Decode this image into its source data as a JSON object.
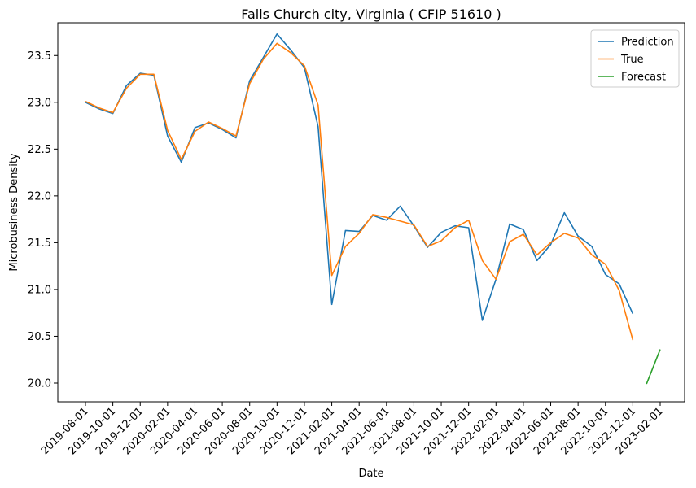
{
  "chart_data": {
    "type": "line",
    "title": "Falls Church city, Virginia ( CFIP 51610 )",
    "xlabel": "Date",
    "ylabel": "Microbusiness Density",
    "ylim": [
      19.8,
      23.85
    ],
    "yticks": [
      "20.0",
      "20.5",
      "21.0",
      "21.5",
      "22.0",
      "22.5",
      "23.0",
      "23.5"
    ],
    "xticks": [
      "2019-08-01",
      "2019-10-01",
      "2019-12-01",
      "2020-02-01",
      "2020-04-01",
      "2020-06-01",
      "2020-08-01",
      "2020-10-01",
      "2020-12-01",
      "2021-02-01",
      "2021-04-01",
      "2021-06-01",
      "2021-08-01",
      "2021-10-01",
      "2021-12-01",
      "2022-02-01",
      "2022-04-01",
      "2022-06-01",
      "2022-08-01",
      "2022-10-01",
      "2022-12-01",
      "2023-02-01"
    ],
    "x": [
      "2019-08-01",
      "2019-09-01",
      "2019-10-01",
      "2019-11-01",
      "2019-12-01",
      "2020-01-01",
      "2020-02-01",
      "2020-03-01",
      "2020-04-01",
      "2020-05-01",
      "2020-06-01",
      "2020-07-01",
      "2020-08-01",
      "2020-09-01",
      "2020-10-01",
      "2020-11-01",
      "2020-12-01",
      "2021-01-01",
      "2021-02-01",
      "2021-03-01",
      "2021-04-01",
      "2021-05-01",
      "2021-06-01",
      "2021-07-01",
      "2021-08-01",
      "2021-09-01",
      "2021-10-01",
      "2021-11-01",
      "2021-12-01",
      "2022-01-01",
      "2022-02-01",
      "2022-03-01",
      "2022-04-01",
      "2022-05-01",
      "2022-06-01",
      "2022-07-01",
      "2022-08-01",
      "2022-09-01",
      "2022-10-01",
      "2022-11-01",
      "2022-12-01"
    ],
    "series": [
      {
        "name": "Prediction",
        "color": "#1f77b4",
        "x": [
          "2019-08-01",
          "2019-09-01",
          "2019-10-01",
          "2019-11-01",
          "2019-12-01",
          "2020-01-01",
          "2020-02-01",
          "2020-03-01",
          "2020-04-01",
          "2020-05-01",
          "2020-06-01",
          "2020-07-01",
          "2020-08-01",
          "2020-09-01",
          "2020-10-01",
          "2020-11-01",
          "2020-12-01",
          "2021-01-01",
          "2021-02-01",
          "2021-03-01",
          "2021-04-01",
          "2021-05-01",
          "2021-06-01",
          "2021-07-01",
          "2021-08-01",
          "2021-09-01",
          "2021-10-01",
          "2021-11-01",
          "2021-12-01",
          "2022-01-01",
          "2022-02-01",
          "2022-03-01",
          "2022-04-01",
          "2022-05-01",
          "2022-06-01",
          "2022-07-01",
          "2022-08-01",
          "2022-09-01",
          "2022-10-01",
          "2022-11-01",
          "2022-12-01"
        ],
        "values": [
          23.0,
          22.93,
          22.88,
          23.18,
          23.31,
          23.29,
          22.64,
          22.36,
          22.73,
          22.78,
          22.71,
          22.62,
          23.23,
          23.48,
          23.73,
          23.56,
          23.37,
          22.74,
          20.84,
          21.63,
          21.62,
          21.79,
          21.74,
          21.89,
          21.68,
          21.45,
          21.61,
          21.68,
          21.66,
          20.67,
          21.11,
          21.7,
          21.64,
          21.31,
          21.48,
          21.82,
          21.57,
          21.46,
          21.16,
          21.06,
          20.74
        ]
      },
      {
        "name": "True",
        "color": "#ff7f0e",
        "x": [
          "2019-08-01",
          "2019-09-01",
          "2019-10-01",
          "2019-11-01",
          "2019-12-01",
          "2020-01-01",
          "2020-02-01",
          "2020-03-01",
          "2020-04-01",
          "2020-05-01",
          "2020-06-01",
          "2020-07-01",
          "2020-08-01",
          "2020-09-01",
          "2020-10-01",
          "2020-11-01",
          "2020-12-01",
          "2021-01-01",
          "2021-02-01",
          "2021-03-01",
          "2021-04-01",
          "2021-05-01",
          "2021-06-01",
          "2021-07-01",
          "2021-08-01",
          "2021-09-01",
          "2021-10-01",
          "2021-11-01",
          "2021-12-01",
          "2022-01-01",
          "2022-02-01",
          "2022-03-01",
          "2022-04-01",
          "2022-05-01",
          "2022-06-01",
          "2022-07-01",
          "2022-08-01",
          "2022-09-01",
          "2022-10-01",
          "2022-11-01",
          "2022-12-01"
        ],
        "values": [
          23.01,
          22.94,
          22.89,
          23.15,
          23.3,
          23.3,
          22.7,
          22.39,
          22.69,
          22.79,
          22.72,
          22.64,
          23.2,
          23.46,
          23.63,
          23.53,
          23.39,
          22.97,
          21.15,
          21.46,
          21.6,
          21.8,
          21.77,
          21.73,
          21.69,
          21.46,
          21.52,
          21.66,
          21.74,
          21.31,
          21.11,
          21.51,
          21.59,
          21.37,
          21.5,
          21.6,
          21.55,
          21.37,
          21.27,
          20.99,
          20.46
        ]
      },
      {
        "name": "Forecast",
        "color": "#2ca02c",
        "x": [
          "2023-01-01",
          "2023-02-01"
        ],
        "values": [
          19.99,
          20.36
        ]
      }
    ],
    "legend": "top-right",
    "grid": false
  }
}
